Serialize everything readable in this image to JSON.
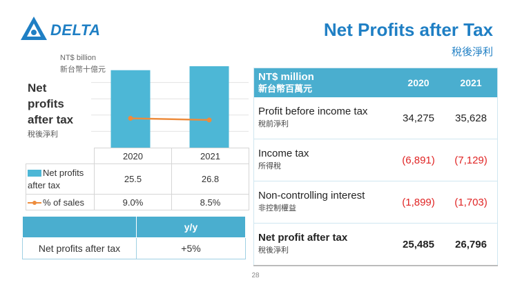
{
  "brand": {
    "logo_text": "DELTA",
    "accent": "#1f7fc4",
    "header_color": "#4aaecf"
  },
  "title": "Net Profits after Tax",
  "subtitle": "稅後淨利",
  "chart": {
    "unit_en": "NT$ billion",
    "unit_zh": "新台幣十億元",
    "label_lines": [
      "Net",
      "profits",
      "after tax"
    ],
    "label_zh": "稅後淨利"
  },
  "chart_data": {
    "type": "bar",
    "title": "Net profits after tax",
    "categories": [
      "2020",
      "2021"
    ],
    "series": [
      {
        "name": "Net profits after tax",
        "values": [
          25.5,
          26.8
        ],
        "color": "#4db7d6"
      },
      {
        "name": "% of sales",
        "values": [
          9.0,
          8.5
        ],
        "type": "line",
        "color": "#ed8c3d"
      }
    ],
    "ylabel": "NT$ billion"
  },
  "left_table": {
    "years": [
      "2020",
      "2021"
    ],
    "rows": [
      {
        "legend": "Net profits after tax",
        "v2020": "25.5",
        "v2021": "26.8"
      },
      {
        "legend": "% of sales",
        "v2020": "9.0%",
        "v2021": "8.5%"
      }
    ]
  },
  "yy_table": {
    "header": "y/y",
    "row_label": "Net profits after tax",
    "value": "+5%"
  },
  "right_table": {
    "header_en": "NT$ million",
    "header_zh": "新台幣百萬元",
    "years": [
      "2020",
      "2021"
    ],
    "rows": [
      {
        "en": "Profit before income tax",
        "zh": "稅前淨利",
        "v2020": "34,275",
        "v2021": "35,628"
      },
      {
        "en": "Income tax",
        "zh": "所得稅",
        "v2020": "(6,891)",
        "v2021": "(7,129)"
      },
      {
        "en": "Non-controlling interest",
        "zh": "非控制權益",
        "v2020": "(1,899)",
        "v2021": "(1,703)"
      },
      {
        "en": "Net profit after tax",
        "zh": "稅後淨利",
        "v2020": "25,485",
        "v2021": "26,796"
      }
    ]
  },
  "page_number": "28"
}
